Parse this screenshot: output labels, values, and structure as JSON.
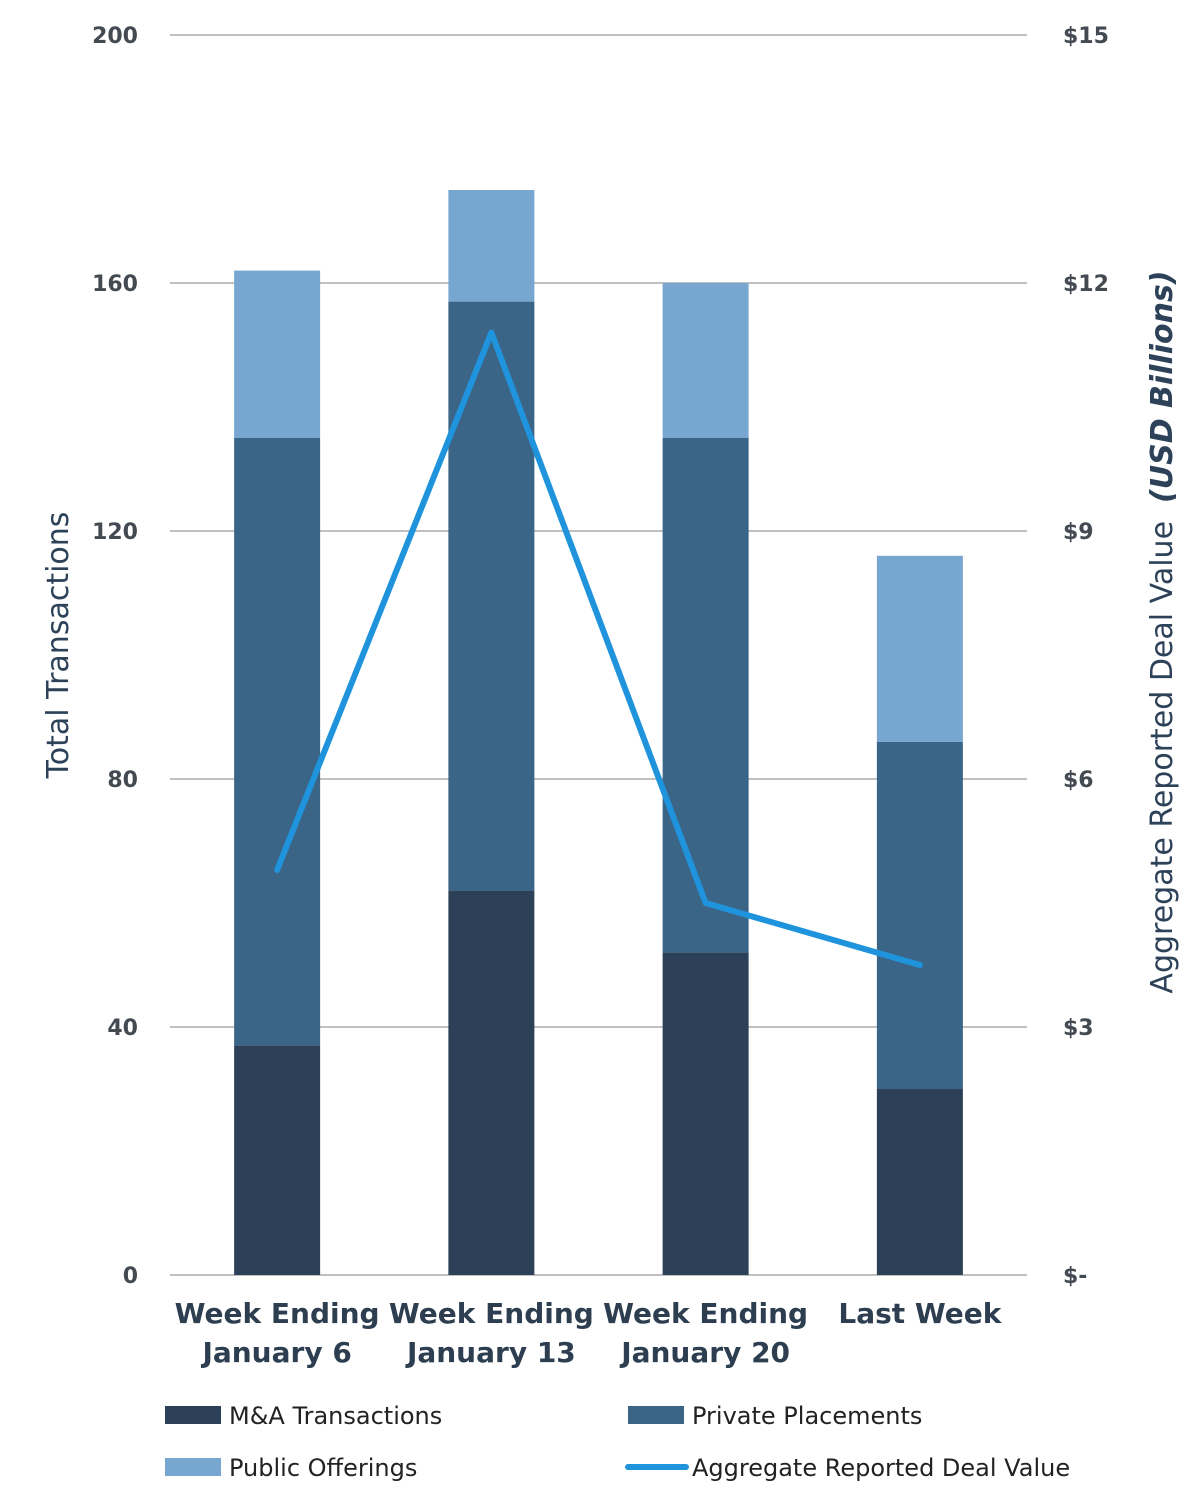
{
  "chart_data": {
    "type": "bar",
    "stacked": true,
    "categories": [
      [
        "Week Ending",
        "January 6"
      ],
      [
        "Week Ending",
        "January 13"
      ],
      [
        "Week Ending",
        "January 20"
      ],
      [
        "Last Week"
      ]
    ],
    "series": [
      {
        "name": "M&A Transactions",
        "color": "#2c4057",
        "values": [
          37,
          62,
          52,
          30
        ]
      },
      {
        "name": "Private Placements",
        "color": "#3b6587",
        "values": [
          98,
          95,
          83,
          56
        ]
      },
      {
        "name": "Public Offerings",
        "color": "#77a6d0",
        "values": [
          27,
          18,
          25,
          30
        ]
      }
    ],
    "line_series": {
      "name": "Aggregate Reported Deal Value",
      "color": "#1f93dc",
      "axis": "right",
      "values": [
        4.9,
        11.4,
        4.5,
        3.75
      ]
    },
    "y_left": {
      "label": "Total Transactions",
      "range": [
        0,
        200
      ],
      "ticks": [
        "0",
        "40",
        "80",
        "120",
        "160",
        "200"
      ]
    },
    "y_right": {
      "label": "Aggregate Reported Deal Value",
      "label_suffix": "(USD Billions)",
      "range": [
        0,
        15
      ],
      "ticks": [
        "$-",
        "$3",
        "$6",
        "$9",
        "$12",
        "$15"
      ]
    },
    "grid": true,
    "legend": "bottom"
  }
}
